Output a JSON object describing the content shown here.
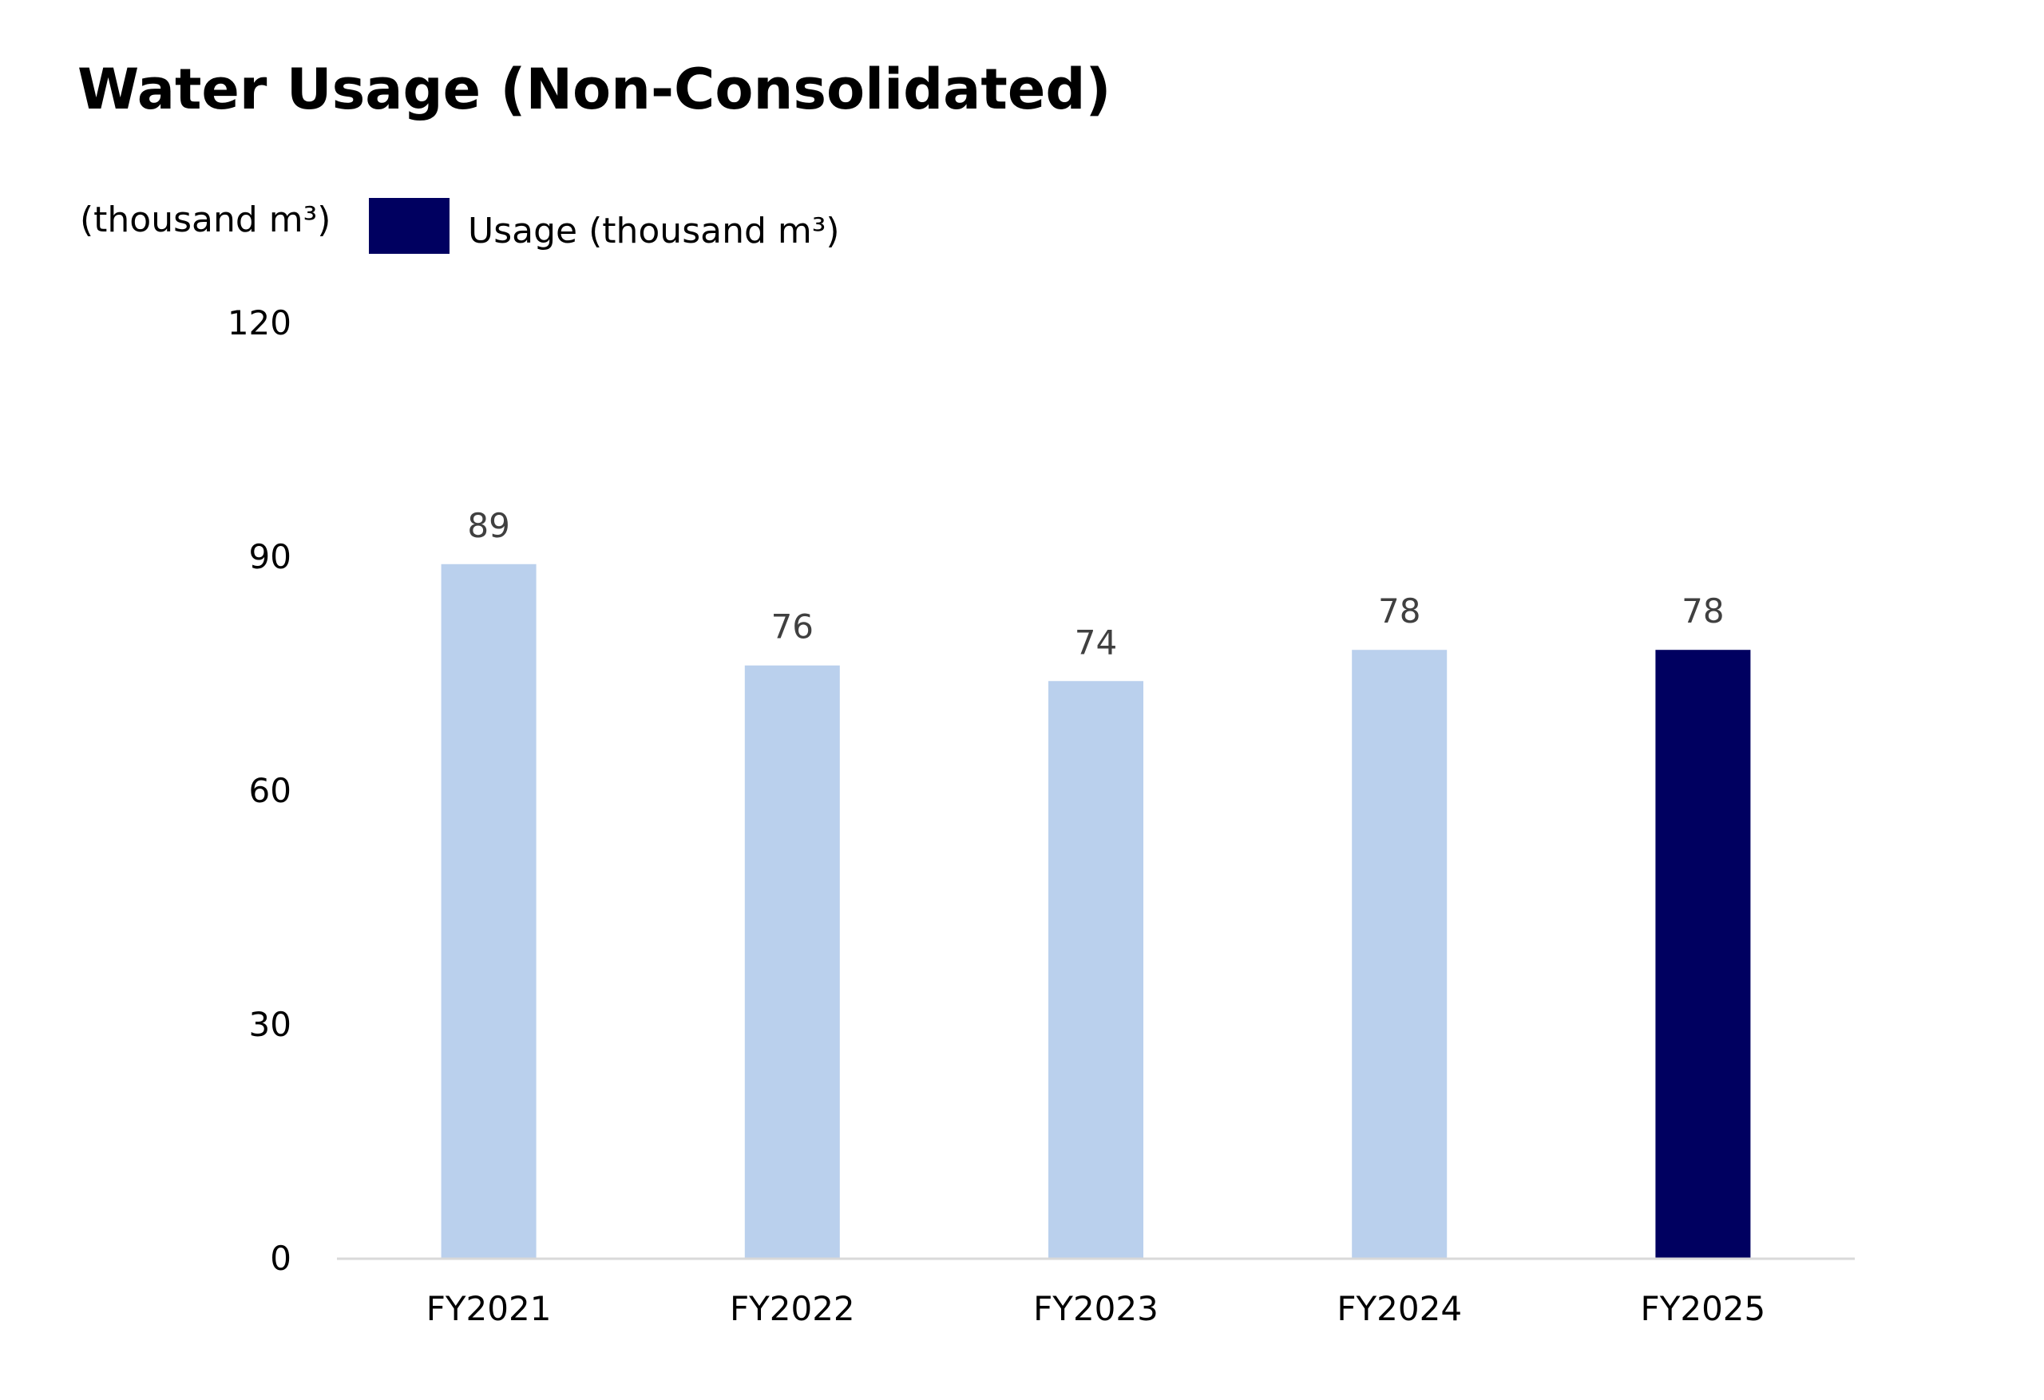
{
  "chart_data": {
    "type": "bar",
    "title": "Water Usage (Non-Consolidated)",
    "ylabel": "(thousand m³)",
    "xlabel": "",
    "categories": [
      "FY2021",
      "FY2022",
      "FY2023",
      "FY2024",
      "FY2025"
    ],
    "series": [
      {
        "name": "Usage (thousand m³)",
        "values": [
          89,
          76,
          74,
          78,
          78
        ]
      }
    ],
    "data_labels": [
      "89",
      "76",
      "74",
      "78",
      "78"
    ],
    "ylim": [
      0,
      120
    ],
    "yticks": [
      0,
      30,
      60,
      90,
      120
    ],
    "ytick_labels": [
      "0",
      "30",
      "60",
      "90",
      "120"
    ],
    "grid": false,
    "legend_position": "top-left",
    "colors": {
      "bar": "#bad0ed",
      "highlight_bar": "#000060",
      "legend_swatch": "#000060",
      "axis_line": "#d9d9d9",
      "data_label": "#404040"
    },
    "highlight_index": 4
  }
}
